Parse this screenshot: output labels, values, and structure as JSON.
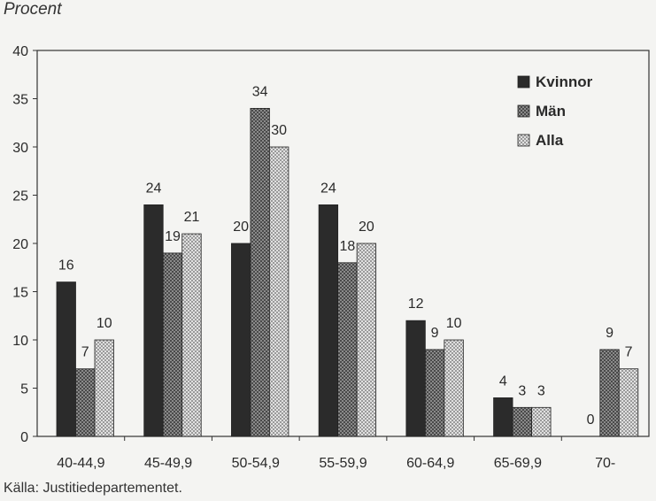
{
  "ylabel": "Procent",
  "source": "Källa: Justitiedepartementet.",
  "colors": {
    "Kvinnor": "#2b2b2b",
    "Män": "#6d6d6d",
    "Alla": "#bdbdbd"
  },
  "chart_data": {
    "type": "bar",
    "title": "",
    "xlabel": "",
    "ylabel": "Procent",
    "ylim": [
      0,
      40
    ],
    "yticks": [
      0,
      5,
      10,
      15,
      20,
      25,
      30,
      35,
      40
    ],
    "grid": false,
    "legend_position": "top-right",
    "categories": [
      "40-44,9",
      "45-49,9",
      "50-54,9",
      "55-59,9",
      "60-64,9",
      "65-69,9",
      "70-"
    ],
    "series": [
      {
        "name": "Kvinnor",
        "values": [
          16,
          24,
          20,
          24,
          12,
          4,
          0
        ]
      },
      {
        "name": "Män",
        "values": [
          7,
          19,
          34,
          18,
          9,
          3,
          9
        ]
      },
      {
        "name": "Alla",
        "values": [
          10,
          21,
          30,
          20,
          10,
          3,
          7
        ]
      }
    ]
  }
}
